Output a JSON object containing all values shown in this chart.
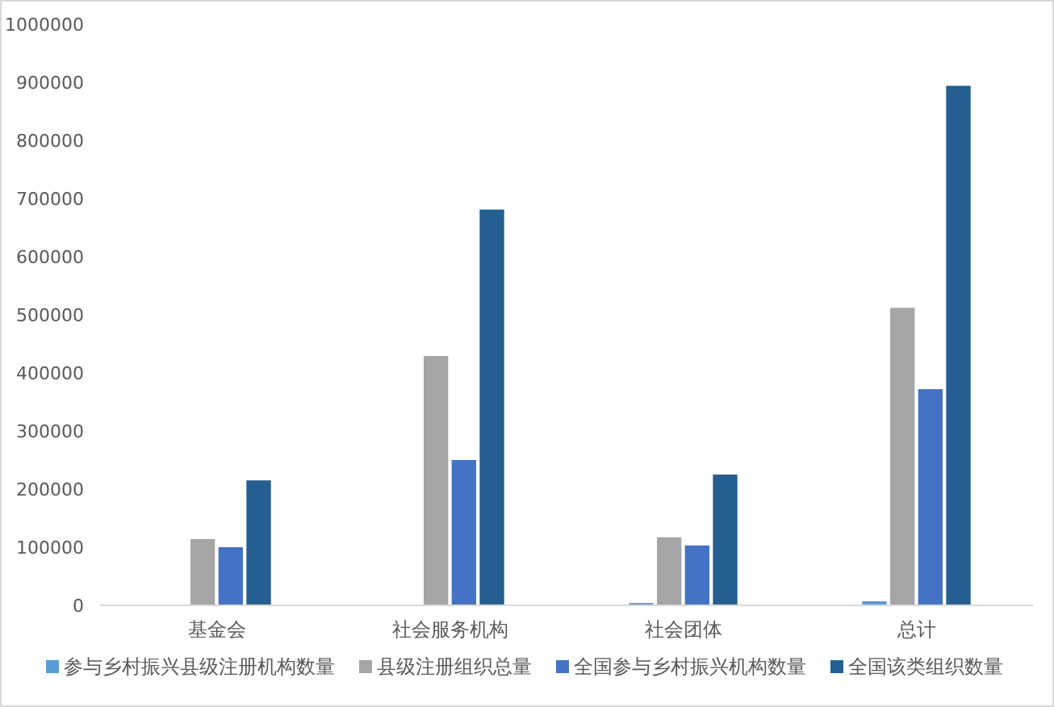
{
  "chart_data": {
    "type": "bar",
    "categories": [
      "基金会",
      "社会服务机构",
      "社会团体",
      "总计"
    ],
    "series": [
      {
        "name": "参与乡村振兴县级注册机构数量",
        "color": "#5b9bd5",
        "values": [
          null,
          null,
          4000,
          7000
        ]
      },
      {
        "name": "县级注册组织总量",
        "color": "#a5a5a5",
        "values": [
          114000,
          429000,
          117000,
          512000
        ]
      },
      {
        "name": "全国参与乡村振兴机构数量",
        "color": "#4472c4",
        "values": [
          100000,
          250000,
          103000,
          372000
        ]
      },
      {
        "name": "全国该类组织数量",
        "color": "#255e91",
        "values": [
          215000,
          681000,
          225000,
          894000
        ]
      }
    ],
    "ylim": [
      0,
      1000000
    ],
    "yticks": [
      0,
      100000,
      200000,
      300000,
      400000,
      500000,
      600000,
      700000,
      800000,
      900000,
      1000000
    ],
    "legend": "bottom"
  }
}
